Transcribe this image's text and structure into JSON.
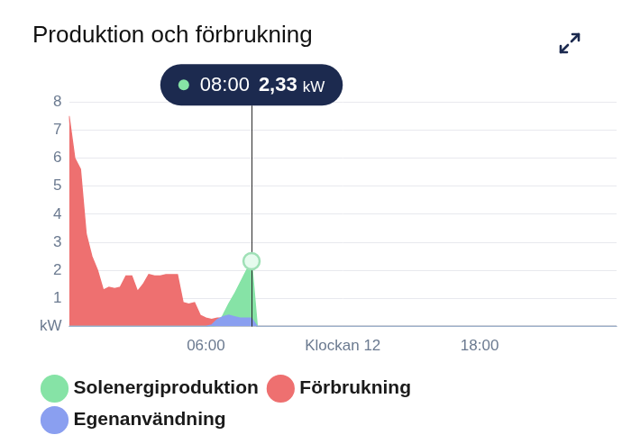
{
  "chart_data": {
    "type": "area",
    "title": "Produktion och förbrukning",
    "x": [
      0,
      0.25,
      0.5,
      0.75,
      1,
      1.25,
      1.5,
      1.75,
      2,
      2.25,
      2.5,
      2.75,
      3,
      3.25,
      3.5,
      3.75,
      4,
      4.25,
      4.5,
      4.75,
      5,
      5.25,
      5.5,
      5.75,
      6,
      6.25,
      6.5,
      6.75,
      7,
      7.25,
      7.5,
      7.75,
      8,
      8.25,
      24
    ],
    "xlim": [
      0,
      24
    ],
    "xticks": [
      {
        "value": 6,
        "label": "06:00"
      },
      {
        "value": 12,
        "label": "Klockan 12"
      },
      {
        "value": 18,
        "label": "18:00"
      }
    ],
    "ylim": [
      0,
      8
    ],
    "yticks": [
      {
        "value": 0,
        "label": "kW"
      },
      1,
      2,
      3,
      4,
      5,
      6,
      7,
      8
    ],
    "grid": "y",
    "legend": "bottom",
    "series": [
      {
        "name": "Solenergiproduktion",
        "color": "#86e3a6",
        "values": [
          0,
          0,
          0,
          0,
          0,
          0,
          0,
          0,
          0,
          0,
          0,
          0,
          0,
          0,
          0,
          0,
          0,
          0,
          0,
          0,
          0,
          0,
          0,
          0,
          0,
          0,
          0.05,
          0.4,
          0.8,
          1.15,
          1.55,
          1.95,
          2.33,
          0,
          0
        ]
      },
      {
        "name": "Förbrukning",
        "color": "#ee7070",
        "values": [
          7.5,
          6.0,
          5.6,
          3.3,
          2.5,
          2.0,
          1.3,
          1.4,
          1.35,
          1.4,
          1.8,
          1.8,
          1.25,
          1.5,
          1.85,
          1.8,
          1.8,
          1.85,
          1.85,
          1.85,
          0.85,
          0.8,
          0.85,
          0.4,
          0.3,
          0.25,
          0.3,
          0.3,
          0.3,
          0.3,
          0.3,
          0.3,
          0.3,
          0,
          0
        ]
      },
      {
        "name": "Egenanvändning",
        "color": "#8a9ff0",
        "values": [
          0,
          0,
          0,
          0,
          0,
          0,
          0,
          0,
          0,
          0,
          0,
          0,
          0,
          0,
          0,
          0,
          0,
          0,
          0,
          0,
          0,
          0,
          0,
          0,
          0,
          0.05,
          0.25,
          0.35,
          0.4,
          0.35,
          0.3,
          0.3,
          0.3,
          0,
          0
        ]
      }
    ],
    "annotations": [
      {
        "x": 8,
        "y": 2.33,
        "label": "08:00",
        "value_label": "2,33",
        "unit": "kW"
      }
    ]
  }
}
